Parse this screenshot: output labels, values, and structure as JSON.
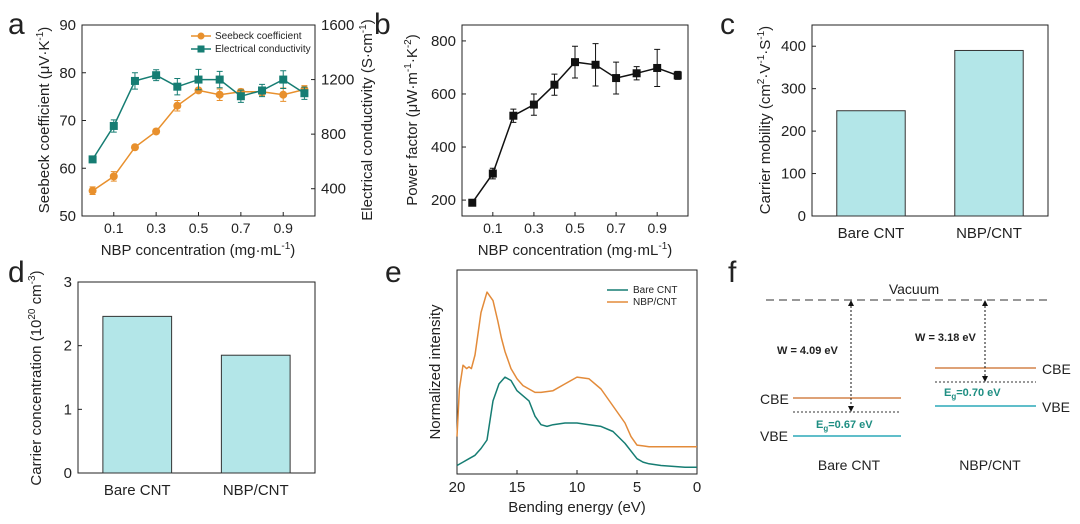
{
  "chart_data": [
    {
      "panel_id": "a",
      "type": "line",
      "xlabel": "NBP concentration (mg·mL",
      "xlabel_sup": "-1",
      "xlabel_close": ")",
      "ylabel": "Seebeck coefficient (μV·K",
      "ylabel_sup": "-1",
      "ylabel_close": ")",
      "ylabel2": "Electrical conductivity (S·cm",
      "ylabel2_sup": "-1",
      "ylabel2_close": ")",
      "xlim": [
        -0.05,
        1.05
      ],
      "ylim": [
        50,
        90
      ],
      "ylim2": [
        200,
        1600
      ],
      "xticks": [
        "0.1",
        "0.3",
        "0.5",
        "0.7",
        "0.9"
      ],
      "xtick_values": [
        0.1,
        0.3,
        0.5,
        0.7,
        0.9
      ],
      "yticks": [
        "50",
        "60",
        "70",
        "80",
        "90"
      ],
      "ytick_values": [
        50,
        60,
        70,
        80,
        90
      ],
      "yticks2": [
        "400",
        "800",
        "1200",
        "1600"
      ],
      "ytick2_values": [
        400,
        800,
        1200,
        1600
      ],
      "legend": [
        "Seebeck coefficient",
        "Electrical conductivity"
      ],
      "series": [
        {
          "name": "Seebeck coefficient",
          "axis": "left",
          "color": "#E8902D",
          "marker": "circle",
          "x": [
            0.0,
            0.1,
            0.2,
            0.3,
            0.4,
            0.5,
            0.6,
            0.7,
            0.8,
            0.9,
            1.0
          ],
          "y": [
            55.3,
            58.3,
            64.4,
            67.7,
            73.1,
            76.3,
            75.4,
            76.0,
            76.0,
            75.4,
            76.5
          ],
          "err": [
            0.8,
            1.0,
            0.4,
            0.5,
            1.1,
            0.5,
            1.2,
            0.6,
            0.8,
            1.4,
            0.8
          ]
        },
        {
          "name": "Electrical conductivity",
          "axis": "right",
          "color": "#167D73",
          "marker": "square",
          "x": [
            0.0,
            0.1,
            0.2,
            0.3,
            0.4,
            0.5,
            0.6,
            0.7,
            0.8,
            0.9,
            1.0
          ],
          "y": [
            615,
            860,
            1190,
            1232,
            1148,
            1200,
            1200,
            1078,
            1120,
            1200,
            1100
          ],
          "err": [
            0,
            45,
            60,
            40,
            60,
            75,
            60,
            45,
            45,
            65,
            45
          ]
        }
      ]
    },
    {
      "panel_id": "b",
      "type": "line",
      "xlabel": "NBP concentration (mg·mL",
      "xlabel_sup": "-1",
      "xlabel_close": ")",
      "ylabel": "Power factor (μW·m",
      "ylabel_sup": "-1",
      "ylabel_mid": "·K",
      "ylabel_sup2": "-2",
      "ylabel_close": ")",
      "xlim": [
        -0.05,
        1.05
      ],
      "ylim": [
        140,
        860
      ],
      "xticks": [
        "0.1",
        "0.3",
        "0.5",
        "0.7",
        "0.9"
      ],
      "xtick_values": [
        0.1,
        0.3,
        0.5,
        0.7,
        0.9
      ],
      "yticks": [
        "200",
        "400",
        "600",
        "800"
      ],
      "ytick_values": [
        200,
        400,
        600,
        800
      ],
      "series": [
        {
          "name": "Power factor",
          "color": "#111111",
          "marker": "square",
          "x": [
            0.0,
            0.1,
            0.2,
            0.3,
            0.4,
            0.5,
            0.6,
            0.7,
            0.8,
            0.9,
            1.0
          ],
          "y": [
            190,
            300,
            518,
            560,
            635,
            720,
            710,
            660,
            678,
            698,
            670
          ],
          "err": [
            0,
            20,
            25,
            40,
            40,
            60,
            80,
            60,
            25,
            70,
            15
          ]
        }
      ]
    },
    {
      "panel_id": "c",
      "type": "bar",
      "ylabel": "Carrier mobility (cm",
      "ylabel_sup": "2",
      "ylabel_mid": "·V",
      "ylabel_sup2": "-1",
      "ylabel_mid2": "·S",
      "ylabel_sup3": "-1",
      "ylabel_close": ")",
      "ylim": [
        0,
        450
      ],
      "yticks": [
        "0",
        "100",
        "200",
        "300",
        "400"
      ],
      "ytick_values": [
        0,
        100,
        200,
        300,
        400
      ],
      "categories": [
        "Bare CNT",
        "NBP/CNT"
      ],
      "values": [
        248,
        390
      ],
      "color": "#B3E6E8"
    },
    {
      "panel_id": "d",
      "type": "bar",
      "ylabel": "Carrier concentration (10",
      "ylabel_sup": "20",
      "ylabel_mid": " cm",
      "ylabel_sup2": "-3",
      "ylabel_close": ")",
      "ylim": [
        0,
        3
      ],
      "yticks": [
        "0",
        "1",
        "2",
        "3"
      ],
      "ytick_values": [
        0,
        1,
        2,
        3
      ],
      "categories": [
        "Bare CNT",
        "NBP/CNT"
      ],
      "values": [
        2.46,
        1.85
      ],
      "color": "#B3E6E8"
    },
    {
      "panel_id": "e",
      "type": "line",
      "xlabel": "Bending energy (eV)",
      "ylabel": "Normalized intensity",
      "xlim": [
        20,
        0
      ],
      "ylim": [
        0,
        1.2
      ],
      "xticks": [
        "20",
        "15",
        "10",
        "5",
        "0"
      ],
      "xtick_values": [
        20,
        15,
        10,
        5,
        0
      ],
      "legend": [
        "Bare CNT",
        "NBP/CNT"
      ],
      "series": [
        {
          "name": "Bare CNT",
          "color": "#167D73",
          "x": [
            20,
            19.5,
            19,
            18.5,
            18,
            17.5,
            17,
            16.5,
            16,
            15.5,
            15,
            14.5,
            14,
            13.5,
            13,
            12.5,
            12,
            11,
            10,
            9,
            8,
            7,
            6,
            5,
            4.5,
            4,
            3,
            2,
            1,
            0
          ],
          "y": [
            0.05,
            0.07,
            0.09,
            0.11,
            0.15,
            0.2,
            0.43,
            0.53,
            0.57,
            0.55,
            0.49,
            0.46,
            0.43,
            0.34,
            0.29,
            0.28,
            0.29,
            0.3,
            0.3,
            0.29,
            0.28,
            0.25,
            0.18,
            0.09,
            0.07,
            0.06,
            0.05,
            0.045,
            0.04,
            0.04
          ]
        },
        {
          "name": "NBP/CNT",
          "color": "#E38B3A",
          "x": [
            20,
            19.8,
            19.5,
            19.2,
            19,
            18.8,
            18.5,
            18,
            17.5,
            17,
            16.6,
            16.3,
            16,
            15.5,
            15,
            14.5,
            14,
            13.5,
            13,
            12,
            11,
            10,
            9,
            8,
            7,
            6,
            5.5,
            5,
            4.5,
            4,
            3,
            2,
            1,
            0
          ],
          "y": [
            0.22,
            0.5,
            0.64,
            0.62,
            0.63,
            0.62,
            0.7,
            0.95,
            1.07,
            1.02,
            0.9,
            0.8,
            0.72,
            0.62,
            0.56,
            0.52,
            0.5,
            0.48,
            0.48,
            0.49,
            0.53,
            0.57,
            0.56,
            0.5,
            0.4,
            0.3,
            0.22,
            0.17,
            0.165,
            0.16,
            0.16,
            0.16,
            0.16,
            0.16
          ]
        }
      ]
    },
    {
      "panel_id": "f",
      "type": "diagram",
      "vacuum_label": "Vacuum",
      "left": {
        "name": "Bare CNT",
        "w_label": "W = 4.09 eV",
        "eg_prefix": "E",
        "eg_sub": "g",
        "eg_value": "=0.67 eV",
        "cbe": "CBE",
        "vbe": "VBE"
      },
      "right": {
        "name": "NBP/CNT",
        "w_label": "W = 3.18 eV",
        "eg_prefix": "E",
        "eg_sub": "g",
        "eg_value": "=0.70 eV",
        "cbe": "CBE",
        "vbe": "VBE"
      }
    }
  ]
}
